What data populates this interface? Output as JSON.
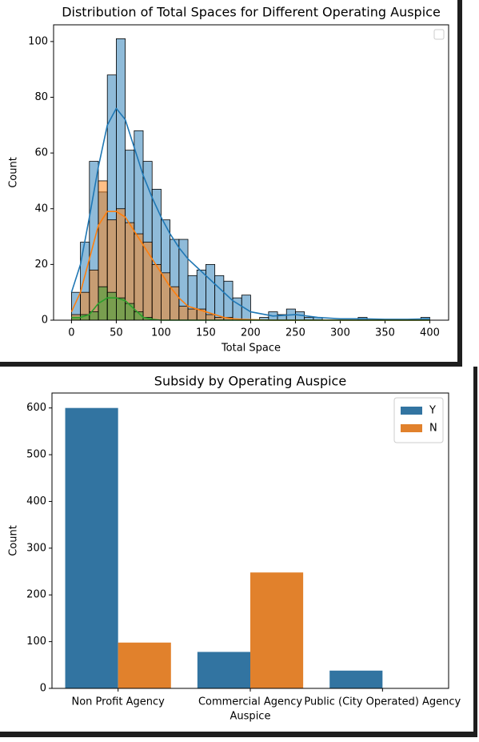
{
  "chart_data": [
    {
      "type": "histogram",
      "title": "Distribution of Total Spaces for Different Operating Auspice",
      "xlabel": "Total Space",
      "ylabel": "Count",
      "bins": [
        0,
        10,
        20,
        30,
        40,
        50,
        60,
        70,
        80,
        90,
        100,
        110,
        120,
        130,
        140,
        150,
        160,
        170,
        180,
        190,
        200,
        210,
        220,
        230,
        240,
        250,
        260,
        270,
        280,
        290,
        300,
        310,
        320,
        330,
        340,
        350,
        360,
        370,
        380,
        390,
        400
      ],
      "kde_x": [
        0,
        10,
        20,
        30,
        40,
        50,
        60,
        70,
        80,
        90,
        100,
        110,
        120,
        130,
        140,
        150,
        160,
        170,
        180,
        190,
        200,
        225,
        250,
        275,
        300,
        325,
        350,
        375,
        400
      ],
      "series": [
        {
          "color": "#1f77b4",
          "values": [
            10,
            28,
            57,
            46,
            88,
            101,
            61,
            68,
            57,
            47,
            36,
            29,
            29,
            16,
            18,
            20,
            16,
            14,
            8,
            9,
            0,
            1,
            3,
            2,
            4,
            3,
            1,
            1,
            0,
            0,
            0,
            0,
            1,
            0,
            0,
            0,
            0,
            0,
            0,
            1
          ],
          "kde": [
            10,
            20,
            37,
            55,
            70,
            76,
            72,
            62,
            52,
            44,
            37,
            31,
            26,
            22,
            19,
            16,
            13,
            10,
            7,
            5,
            3,
            1.5,
            2,
            1,
            0.5,
            0.5,
            0.3,
            0.3,
            0.5
          ]
        },
        {
          "color": "#ff7f0e",
          "values": [
            2,
            10,
            18,
            50,
            36,
            40,
            35,
            31,
            28,
            20,
            17,
            12,
            5,
            4,
            4,
            2,
            1,
            1,
            0,
            0,
            0,
            0,
            0,
            0,
            0,
            0,
            0,
            0,
            0,
            0,
            0,
            0,
            0,
            0,
            0,
            0,
            0,
            0,
            0,
            0
          ],
          "kde": [
            3,
            10,
            22,
            34,
            39,
            39,
            37,
            32,
            27,
            22,
            17,
            12,
            8,
            5,
            4,
            3,
            2,
            1,
            0.5,
            0.3,
            0.2,
            0,
            0,
            0,
            0,
            0,
            0,
            0,
            0
          ]
        },
        {
          "color": "#2ca02c",
          "values": [
            1,
            2,
            3,
            12,
            10,
            8,
            6,
            3,
            1,
            0,
            0,
            0,
            0,
            0,
            0,
            0,
            0,
            0,
            0,
            0,
            0,
            0,
            0,
            0,
            0,
            0,
            0,
            0,
            0,
            0,
            0,
            0,
            0,
            0,
            0,
            0,
            0,
            0,
            0,
            0
          ],
          "kde": [
            1,
            1,
            2,
            6,
            8,
            8,
            7,
            4,
            1,
            0.3,
            0,
            0,
            0,
            0,
            0,
            0,
            0,
            0,
            0,
            0,
            0,
            0,
            0,
            0,
            0,
            0,
            0,
            0,
            0
          ]
        }
      ],
      "xlim": [
        -20,
        421
      ],
      "xticks": [
        0,
        50,
        100,
        150,
        200,
        250,
        300,
        350,
        400
      ],
      "ylim": [
        0,
        106
      ],
      "yticks": [
        0,
        20,
        40,
        60,
        80,
        100
      ],
      "legend": "upper right"
    },
    {
      "type": "bar",
      "title": "Subsidy by Operating Auspice",
      "xlabel": "Auspice",
      "ylabel": "Count",
      "categories": [
        "Non Profit Agency",
        "Commercial Agency",
        "Public (City Operated) Agency"
      ],
      "series": [
        {
          "name": "Y",
          "color": "#3274a1",
          "values": [
            600,
            78,
            38
          ]
        },
        {
          "name": "N",
          "color": "#e1812c",
          "values": [
            98,
            248,
            0
          ]
        }
      ],
      "ylim": [
        0,
        632
      ],
      "yticks": [
        0,
        100,
        200,
        300,
        400,
        500,
        600
      ],
      "legend": "upper right"
    }
  ]
}
